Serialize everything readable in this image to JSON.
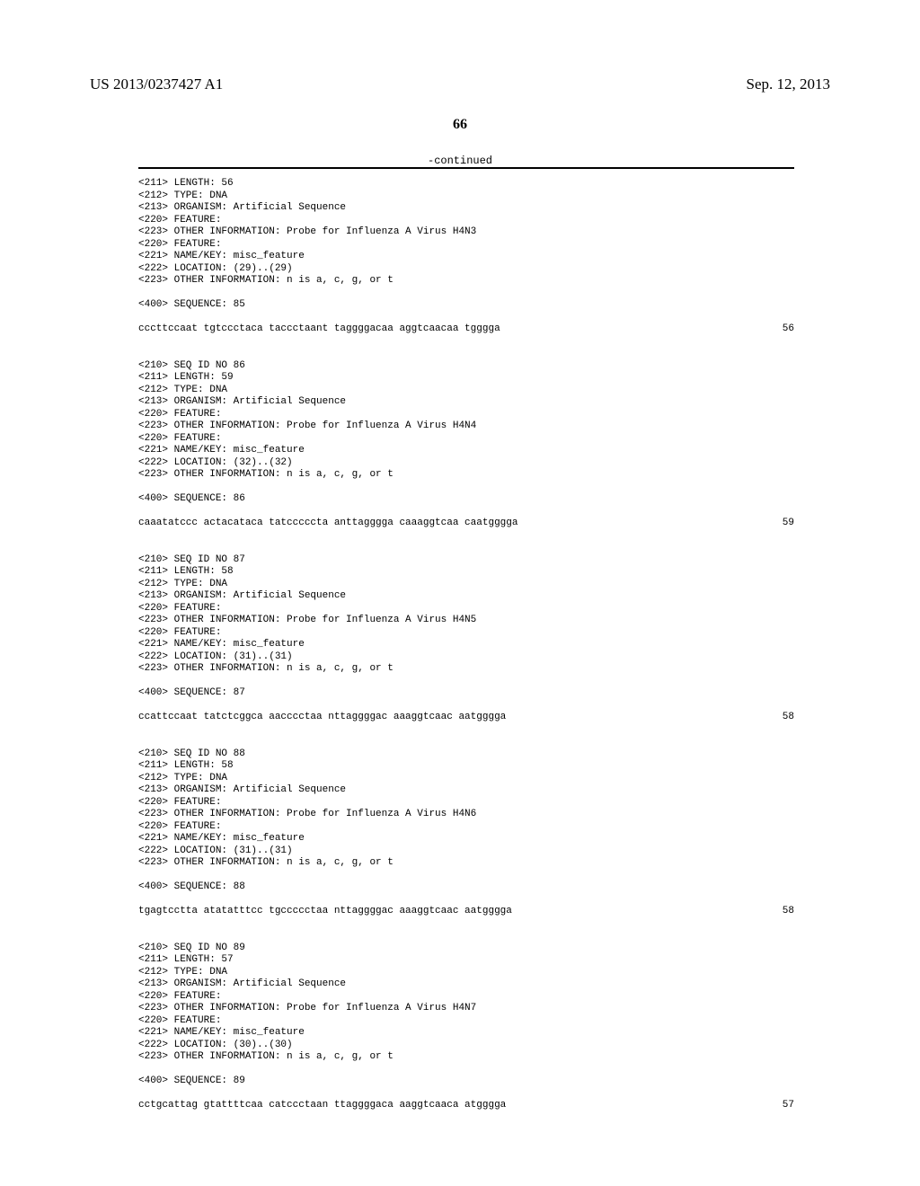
{
  "header": {
    "publication_number": "US 2013/0237427 A1",
    "publication_date": "Sep. 12, 2013"
  },
  "page_number": "66",
  "continued_label": "-continued",
  "entries": [
    {
      "meta": [
        "<211> LENGTH: 56",
        "<212> TYPE: DNA",
        "<213> ORGANISM: Artificial Sequence",
        "<220> FEATURE:",
        "<223> OTHER INFORMATION: Probe for Influenza A Virus H4N3",
        "<220> FEATURE:",
        "<221> NAME/KEY: misc_feature",
        "<222> LOCATION: (29)..(29)",
        "<223> OTHER INFORMATION: n is a, c, g, or t"
      ],
      "sequence_header": "<400> SEQUENCE: 85",
      "sequence": "cccttccaat tgtccctaca taccctaant taggggacaa aggtcaacaa tgggga",
      "length": "56"
    },
    {
      "meta": [
        "<210> SEQ ID NO 86",
        "<211> LENGTH: 59",
        "<212> TYPE: DNA",
        "<213> ORGANISM: Artificial Sequence",
        "<220> FEATURE:",
        "<223> OTHER INFORMATION: Probe for Influenza A Virus H4N4",
        "<220> FEATURE:",
        "<221> NAME/KEY: misc_feature",
        "<222> LOCATION: (32)..(32)",
        "<223> OTHER INFORMATION: n is a, c, g, or t"
      ],
      "sequence_header": "<400> SEQUENCE: 86",
      "sequence": "caaatatccc actacataca tatcccccta anttaggggа caaaggtcaa caatgggga",
      "length": "59"
    },
    {
      "meta": [
        "<210> SEQ ID NO 87",
        "<211> LENGTH: 58",
        "<212> TYPE: DNA",
        "<213> ORGANISM: Artificial Sequence",
        "<220> FEATURE:",
        "<223> OTHER INFORMATION: Probe for Influenza A Virus H4N5",
        "<220> FEATURE:",
        "<221> NAME/KEY: misc_feature",
        "<222> LOCATION: (31)..(31)",
        "<223> OTHER INFORMATION: n is a, c, g, or t"
      ],
      "sequence_header": "<400> SEQUENCE: 87",
      "sequence": "ccattccaat tatctcggca aacccctaa nttaggggac aaaggtcaac aatgggga",
      "length": "58"
    },
    {
      "meta": [
        "<210> SEQ ID NO 88",
        "<211> LENGTH: 58",
        "<212> TYPE: DNA",
        "<213> ORGANISM: Artificial Sequence",
        "<220> FEATURE:",
        "<223> OTHER INFORMATION: Probe for Influenza A Virus H4N6",
        "<220> FEATURE:",
        "<221> NAME/KEY: misc_feature",
        "<222> LOCATION: (31)..(31)",
        "<223> OTHER INFORMATION: n is a, c, g, or t"
      ],
      "sequence_header": "<400> SEQUENCE: 88",
      "sequence": "tgagtcctta atatatttcc tgccccctaa nttaggggac aaaggtcaac aatgggga",
      "length": "58"
    },
    {
      "meta": [
        "<210> SEQ ID NO 89",
        "<211> LENGTH: 57",
        "<212> TYPE: DNA",
        "<213> ORGANISM: Artificial Sequence",
        "<220> FEATURE:",
        "<223> OTHER INFORMATION: Probe for Influenza A Virus H4N7",
        "<220> FEATURE:",
        "<221> NAME/KEY: misc_feature",
        "<222> LOCATION: (30)..(30)",
        "<223> OTHER INFORMATION: n is a, c, g, or t"
      ],
      "sequence_header": "<400> SEQUENCE: 89",
      "sequence": "cctgcattag gtattttcaa catccctaan ttaggggaca aaggtcaaca atgggga",
      "length": "57"
    }
  ]
}
